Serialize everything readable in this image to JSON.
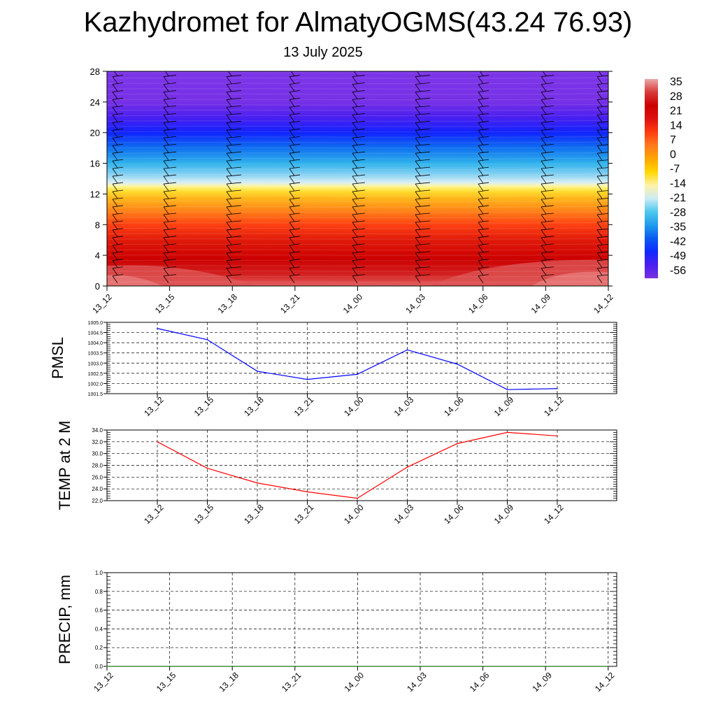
{
  "title": "Kazhydromet for AlmatyOGMS(43.24 76.93)",
  "subtitle": "13 July 2025",
  "chart_data": [
    {
      "type": "heatmap",
      "name": "temperature-cross-section",
      "x_tick_labels": [
        "13_12",
        "13_15",
        "13_18",
        "13_21",
        "14_00",
        "14_03",
        "14_06",
        "14_09",
        "14_12"
      ],
      "y_ticks": [
        "0",
        "4",
        "8",
        "12",
        "16",
        "20",
        "24",
        "28"
      ],
      "ylim": [
        0,
        28
      ],
      "colorbar_labels": [
        "35",
        "28",
        "21",
        "14",
        "7",
        "0",
        "-7",
        "-14",
        "-21",
        "-28",
        "-35",
        "-42",
        "-49",
        "-56"
      ],
      "colormap": [
        "#7a2fe0",
        "#4b1ff0",
        "#1028ff",
        "#0a5af2",
        "#1f9bee",
        "#4dc8ee",
        "#ccebf5",
        "#fff2a8",
        "#ffd700",
        "#ffa500",
        "#ff7a1c",
        "#ff3d10",
        "#e01010",
        "#cc0000",
        "#d83838",
        "#eaa8a8"
      ],
      "grid": false,
      "wind_barbs": true
    },
    {
      "type": "line",
      "name": "pmsl",
      "ylabel": "PMSL",
      "categories": [
        "13_12",
        "13_15",
        "13_18",
        "13_21",
        "14_00",
        "14_03",
        "14_06",
        "14_09",
        "14_12"
      ],
      "values": [
        1004.7,
        1004.15,
        1002.6,
        1002.2,
        1002.45,
        1003.65,
        1002.95,
        1001.7,
        1001.75
      ],
      "ylim": [
        1001.5,
        1005.0
      ],
      "y_ticks": [
        "1001.5",
        "1002.0",
        "1002.5",
        "1003.0",
        "1003.5",
        "1004.0",
        "1004.5",
        "1005.0"
      ],
      "color": "#0000ff",
      "grid": true
    },
    {
      "type": "line",
      "name": "temp-2m",
      "ylabel": "TEMP at 2 M",
      "categories": [
        "13_12",
        "13_15",
        "13_18",
        "13_21",
        "14_00",
        "14_03",
        "14_06",
        "14_09",
        "14_12"
      ],
      "values": [
        32.0,
        27.5,
        25.0,
        23.5,
        22.4,
        27.7,
        31.7,
        33.6,
        33.0
      ],
      "ylim": [
        22.0,
        34.0
      ],
      "y_ticks": [
        "22.0",
        "24.0",
        "26.0",
        "28.0",
        "30.0",
        "32.0",
        "34.0"
      ],
      "color": "#ff0000",
      "grid": true
    },
    {
      "type": "line",
      "name": "precip",
      "ylabel": "PRECIP, mm",
      "categories": [
        "13_12",
        "13_15",
        "13_18",
        "13_21",
        "14_00",
        "14_03",
        "14_06",
        "14_09",
        "14_12"
      ],
      "values": [
        0,
        0,
        0,
        0,
        0,
        0,
        0,
        0,
        0
      ],
      "ylim": [
        0.0,
        1.0
      ],
      "y_ticks": [
        "0.0",
        "0.2",
        "0.4",
        "0.6",
        "0.8",
        "1.0"
      ],
      "color": "#1a7a1a",
      "grid": true
    }
  ]
}
